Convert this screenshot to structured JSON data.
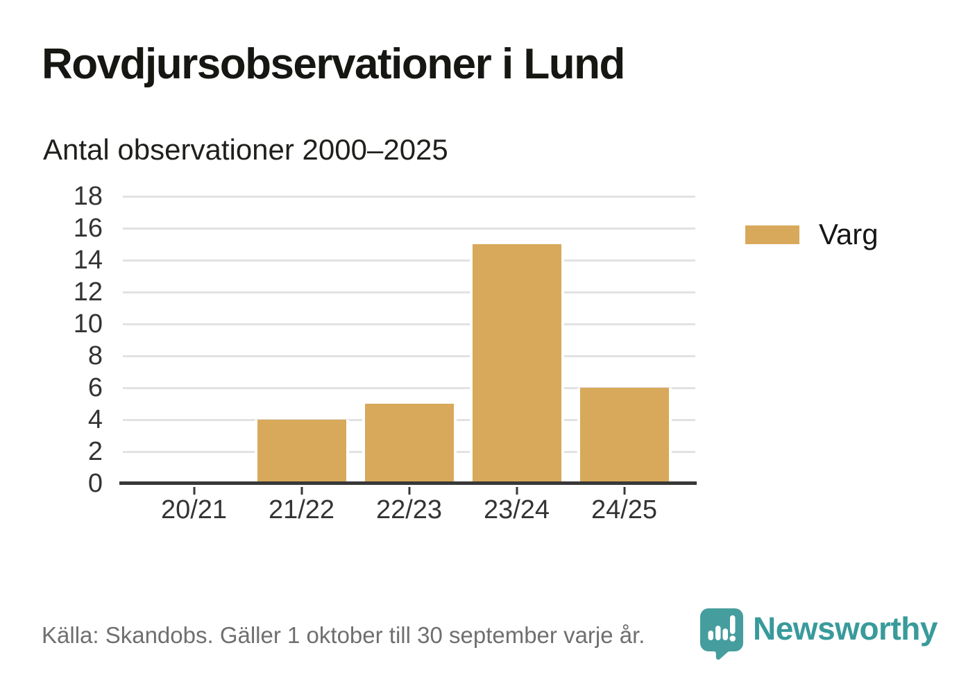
{
  "header": {
    "title": "Rovdjursobservationer i Lund",
    "subtitle": "Antal observationer 2000–2025"
  },
  "chart_data": {
    "type": "bar",
    "categories": [
      "20/21",
      "21/22",
      "22/23",
      "23/24",
      "24/25"
    ],
    "series": [
      {
        "name": "Varg",
        "color": "#d8a95a",
        "values": [
          0,
          4,
          5,
          15,
          6
        ]
      }
    ],
    "title": "Rovdjursobservationer i Lund",
    "subtitle": "Antal observationer 2000–2025",
    "xlabel": "",
    "ylabel": "",
    "ylim": [
      0,
      18
    ],
    "yticks": [
      0,
      2,
      4,
      6,
      8,
      10,
      12,
      14,
      16,
      18
    ],
    "grid": "horizontal",
    "legend_position": "right"
  },
  "legend": {
    "items": [
      {
        "label": "Varg",
        "color": "#d8a95a"
      }
    ]
  },
  "footer": {
    "source": "Källa: Skandobs. Gäller 1 oktober till 30 september varje år.",
    "brand": "Newsworthy"
  },
  "colors": {
    "bar": "#d8a95a",
    "teal": "#399a9b",
    "grid": "#e2e2e2",
    "axis": "#383838",
    "tick_text": "#333333",
    "title_text": "#161613",
    "source_text": "#6f6f6f"
  }
}
